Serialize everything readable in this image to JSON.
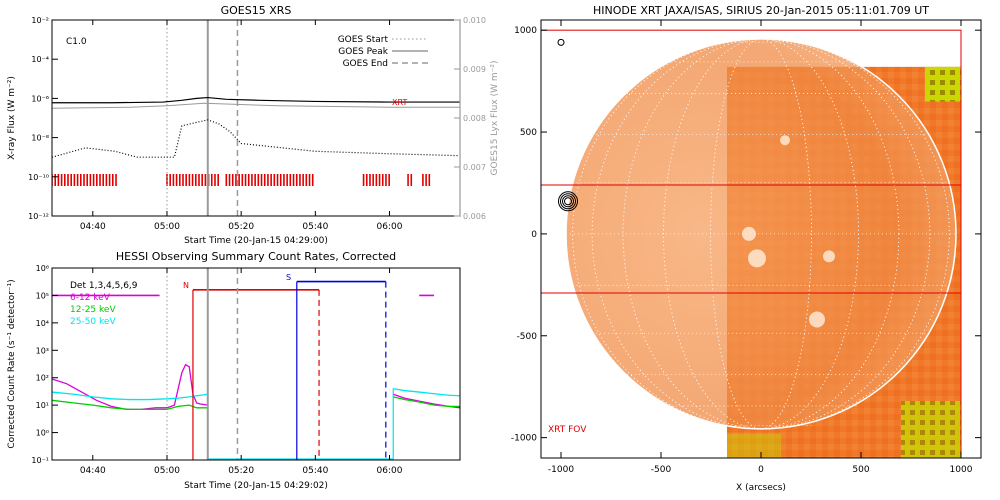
{
  "colors": {
    "red": "#e00000",
    "magenta": "#dd00dd",
    "green": "#00cc00",
    "cyan": "#00e5ee",
    "blue": "#0000dd",
    "gray": "#9a9a9a",
    "black": "#000000",
    "sun_orange": "#f07828",
    "sun_yellow": "#c8d800"
  },
  "chart_data": [
    {
      "type": "line",
      "title": "GOES15 XRS",
      "ylabel": "X-ray Flux (W m⁻²)",
      "y2label": "GOES15 Lyx Flux (W m⁻²)",
      "xlabel": "Start Time (20-Jan-15 04:29:00)",
      "xticks": [
        "04:40",
        "05:00",
        "05:20",
        "05:40",
        "06:00"
      ],
      "yticks": [
        "10⁻¹²",
        "10⁻¹⁰",
        "10⁻⁸",
        "10⁻⁶",
        "10⁻⁴",
        "10⁻²"
      ],
      "y2ticks": [
        "0.006",
        "0.007",
        "0.008",
        "0.009",
        "0.010"
      ],
      "x_range": [
        "04:29",
        "06:19"
      ],
      "ylim": [
        1e-12,
        0.01
      ],
      "yscale": "log",
      "y2lim": [
        0.006,
        0.01
      ],
      "class_label": "C1.0",
      "legend": [
        "GOES Start",
        "GOES Peak",
        "GOES End"
      ],
      "legend_position": "top-right",
      "marker_label": "XRT",
      "events": {
        "goes_start": "05:00",
        "goes_peak": "05:11",
        "goes_end": "05:19"
      },
      "series": [
        {
          "name": "long",
          "x": [
            "04:29",
            "04:45",
            "04:59",
            "05:04",
            "05:08",
            "05:11",
            "05:16",
            "05:25",
            "05:40",
            "06:00",
            "06:19"
          ],
          "y": [
            6e-07,
            6e-07,
            6.5e-07,
            8e-07,
            1e-06,
            1.1e-06,
            9e-07,
            8e-07,
            7e-07,
            6.5e-07,
            6.5e-07
          ]
        },
        {
          "name": "short",
          "x": [
            "04:29",
            "04:38",
            "04:46",
            "04:52",
            "05:00",
            "05:02",
            "05:04",
            "05:08",
            "05:11",
            "05:14",
            "05:17",
            "05:20",
            "05:40",
            "06:00",
            "06:19"
          ],
          "y": [
            1e-09,
            3e-09,
            2e-09,
            1e-09,
            1e-09,
            1e-09,
            4e-08,
            6e-08,
            8e-08,
            5e-08,
            2e-08,
            5e-09,
            2e-09,
            1.5e-09,
            1.2e-09
          ]
        },
        {
          "name": "lyx",
          "x": [
            "04:29",
            "04:50",
            "05:00",
            "05:10",
            "05:30",
            "06:00",
            "06:19"
          ],
          "y": [
            0.0082,
            0.00822,
            0.00825,
            0.0083,
            0.00825,
            0.00822,
            0.00822
          ]
        }
      ],
      "xrt_obs": [
        [
          "04:29",
          "04:47"
        ],
        [
          "05:00",
          "05:14"
        ],
        [
          "05:16",
          "05:40"
        ],
        [
          "05:53",
          "06:00"
        ],
        [
          "06:05",
          "06:06"
        ],
        [
          "06:09",
          "06:11"
        ]
      ]
    },
    {
      "type": "line",
      "title": "HESSI Observing Summary Count Rates, Corrected",
      "ylabel": "Corrected Count Rate (s⁻¹ detector⁻¹)",
      "xlabel": "Start Time (20-Jan-15 04:29:02)",
      "xticks": [
        "04:40",
        "05:00",
        "05:20",
        "05:40",
        "06:00"
      ],
      "yticks": [
        "10⁻¹",
        "10⁰",
        "10¹",
        "10²",
        "10³",
        "10⁴",
        "10⁵",
        "10⁶"
      ],
      "ylim": [
        0.1,
        1000000.0
      ],
      "yscale": "log",
      "legend": [
        "Det 1,3,4,5,6,9",
        "6-12 keV",
        "12-25 keV",
        "25-50 keV"
      ],
      "legend_position": "top-left",
      "annotations": {
        "night": "N",
        "saa": "S"
      },
      "series": [
        {
          "name": "6-12 keV",
          "x": [
            "04:29",
            "04:33",
            "04:37",
            "04:41",
            "04:45",
            "04:49",
            "04:53",
            "04:57",
            "05:00",
            "05:02",
            "05:04",
            "05:05",
            "05:06",
            "05:07",
            "05:08",
            "05:09",
            "05:11"
          ],
          "y": [
            90,
            60,
            30,
            15,
            9,
            7,
            7,
            8,
            8,
            10,
            150,
            300,
            250,
            25,
            12,
            11,
            10
          ]
        },
        {
          "name": "12-25 keV",
          "x": [
            "04:29",
            "04:35",
            "04:40",
            "04:45",
            "04:50",
            "04:55",
            "05:00",
            "05:03",
            "05:06",
            "05:08",
            "05:11"
          ],
          "y": [
            15,
            12,
            10,
            8,
            7,
            7,
            7,
            9,
            10,
            8,
            8
          ]
        },
        {
          "name": "25-50 keV",
          "x": [
            "04:29",
            "04:35",
            "04:40",
            "04:45",
            "04:50",
            "04:55",
            "05:00",
            "05:03",
            "05:06",
            "05:08",
            "05:11"
          ],
          "y": [
            30,
            25,
            20,
            17,
            16,
            16,
            17,
            18,
            20,
            22,
            25
          ]
        },
        {
          "name": "6-12 keV late",
          "x": [
            "06:01",
            "06:04",
            "06:08",
            "06:12",
            "06:16",
            "06:19"
          ],
          "y": [
            25,
            18,
            14,
            11,
            9,
            8
          ]
        },
        {
          "name": "12-25 keV late",
          "x": [
            "06:01",
            "06:04",
            "06:08",
            "06:12",
            "06:16",
            "06:19"
          ],
          "y": [
            20,
            16,
            13,
            10,
            9,
            9
          ]
        },
        {
          "name": "25-50 keV late",
          "x": [
            "06:01",
            "06:04",
            "06:08",
            "06:12",
            "06:16",
            "06:19"
          ],
          "y": [
            40,
            34,
            30,
            26,
            23,
            22
          ]
        }
      ],
      "night": {
        "start": "05:07",
        "end": "05:41"
      },
      "saa": {
        "start": "05:35",
        "end": "05:59"
      },
      "attenuator_segments": [
        [
          "04:29",
          "04:58"
        ],
        [
          "06:08",
          "06:12"
        ]
      ],
      "goes_lines": {
        "peak": "05:11",
        "end": "05:19",
        "start": "05:00"
      }
    },
    {
      "type": "image",
      "title": "HINODE XRT JAXA/ISAS, SIRIUS 20-Jan-2015 05:11:01.709 UT",
      "xlabel": "X (arcsecs)",
      "xticks": [
        "-1000",
        "-500",
        "0",
        "500",
        "1000"
      ],
      "yticks": [
        "1000",
        "500",
        "0",
        "-500",
        "-1000"
      ],
      "xlim": [
        -1100,
        1100
      ],
      "ylim": [
        -1100,
        1050
      ],
      "fov_label": "XRT FOV",
      "fov": {
        "x": [
          -1100,
          1000
        ],
        "y": [
          -1100,
          1000
        ]
      },
      "slit": {
        "y": [
          -290,
          240
        ]
      },
      "sun_radius": 975,
      "image_extent": {
        "x": [
          -170,
          1000
        ],
        "y": [
          -1100,
          820
        ]
      },
      "contours_at": [
        -965,
        160
      ],
      "small_contour_at": [
        -1000,
        940
      ]
    }
  ]
}
